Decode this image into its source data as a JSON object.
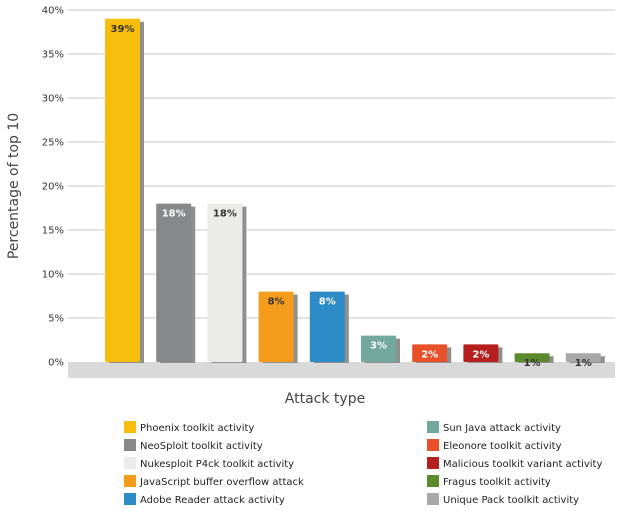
{
  "chart_data": {
    "type": "bar",
    "title": "",
    "xlabel": "Attack type",
    "ylabel": "Percentage  of  top 10",
    "ylim": [
      0,
      40
    ],
    "yticks": [
      "0%",
      "5%",
      "10%",
      "15%",
      "20%",
      "25%",
      "30%",
      "35%",
      "40%"
    ],
    "grid": true,
    "legend_position": "bottom",
    "categories": [
      "Phoenix toolkit activity",
      "NeoSploit toolkit activity",
      "Nukesploit P4ck toolkit activity",
      "JavaScript buffer overflow attack",
      "Adobe Reader attack activity",
      "Sun Java attack activity",
      "Eleonore toolkit activity",
      "Malicious toolkit variant activity",
      "Fragus toolkit activity",
      "Unique Pack toolkit activity"
    ],
    "values": [
      39,
      18,
      18,
      8,
      8,
      3,
      2,
      2,
      1,
      1
    ],
    "data_labels": [
      "39%",
      "18%",
      "18%",
      "8%",
      "8%",
      "3%",
      "2%",
      "2%",
      "1%",
      "1%"
    ],
    "colors": [
      "#f7bd0d",
      "#86888a",
      "#ebebe9",
      "#f59c1d",
      "#2d8bc8",
      "#73a89f",
      "#e8502a",
      "#b5201f",
      "#5b8a2d",
      "#a8a8a8"
    ],
    "label_colors": [
      "#333333",
      "#ffffff",
      "#333333",
      "#333333",
      "#ffffff",
      "#ffffff",
      "#ffffff",
      "#ffffff",
      "#333333",
      "#333333"
    ]
  }
}
